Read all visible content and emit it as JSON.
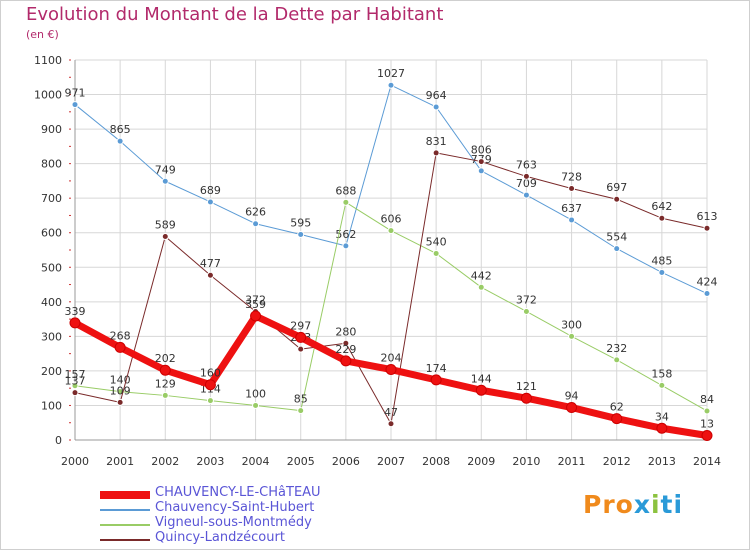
{
  "title": "Evolution du Montant de la Dette par Habitant",
  "subtitle": "(en €)",
  "logo": "Proxiti",
  "colors": {
    "title": "#b22a6b",
    "legend_text": "#5a55d6",
    "grid": "#d7d7d7",
    "axis_text": "#333333"
  },
  "chart_data": {
    "type": "line",
    "title": "Evolution du Montant de la Dette par Habitant",
    "ylabel": "(en €)",
    "x": [
      "2000",
      "2001",
      "2002",
      "2003",
      "2004",
      "2005",
      "2006",
      "2007",
      "2008",
      "2009",
      "2010",
      "2011",
      "2012",
      "2013",
      "2014"
    ],
    "ylim": [
      0,
      1100
    ],
    "yticks": [
      0,
      100,
      200,
      300,
      400,
      500,
      600,
      700,
      800,
      900,
      1000,
      1100
    ],
    "grid": true,
    "legend_position": "bottom-left",
    "series": [
      {
        "name": "CHAUVENCY-LE-CHâTEAU",
        "color": "#ee1111",
        "width": 7,
        "values": [
          339,
          268,
          202,
          160,
          359,
          297,
          229,
          204,
          174,
          144,
          121,
          94,
          62,
          34,
          13
        ]
      },
      {
        "name": "Chauvency-Saint-Hubert",
        "color": "#5b9bd5",
        "width": 1,
        "values": [
          971,
          865,
          749,
          689,
          626,
          595,
          562,
          1027,
          964,
          779,
          709,
          637,
          554,
          485,
          424
        ]
      },
      {
        "name": "Vigneul-sous-Montmédy",
        "color": "#99cc66",
        "width": 1,
        "values": [
          157,
          140,
          129,
          114,
          100,
          85,
          688,
          606,
          540,
          442,
          372,
          300,
          232,
          158,
          84
        ]
      },
      {
        "name": "Quincy-Landzécourt",
        "color": "#7a2a2a",
        "width": 1,
        "values": [
          137,
          109,
          589,
          477,
          372,
          263,
          280,
          47,
          831,
          806,
          763,
          728,
          697,
          642,
          613
        ]
      }
    ]
  }
}
